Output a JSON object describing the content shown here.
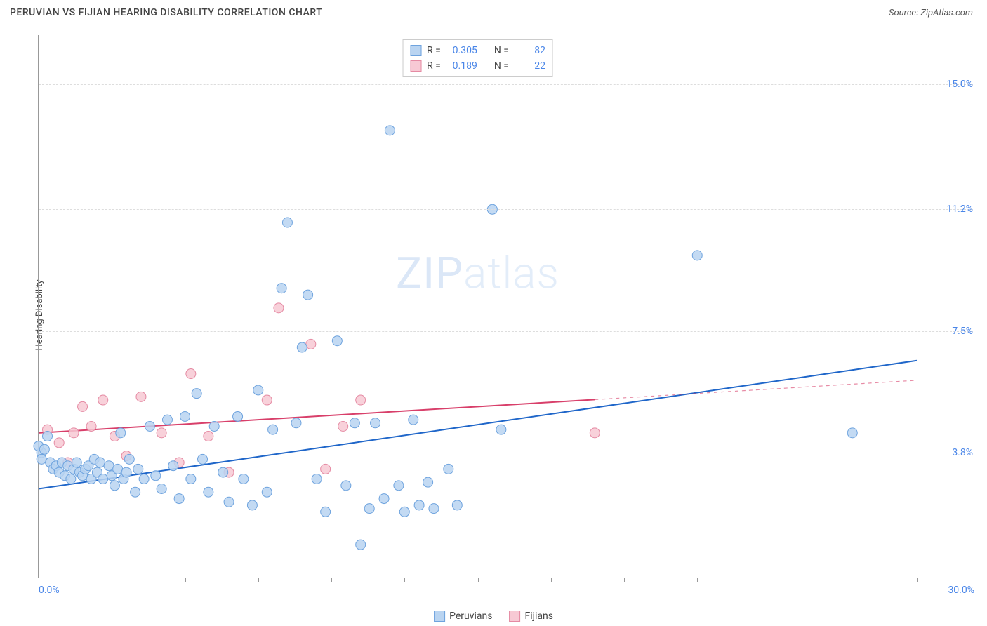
{
  "title": "PERUVIAN VS FIJIAN HEARING DISABILITY CORRELATION CHART",
  "source": "Source: ZipAtlas.com",
  "ylabel": "Hearing Disability",
  "watermark": {
    "bold": "ZIP",
    "thin": "atlas"
  },
  "chart": {
    "type": "scatter_with_regression",
    "background_color": "#ffffff",
    "grid_color": "#dddddd",
    "axis_color": "#999999",
    "value_color": "#4a86e8",
    "xlim": [
      0,
      30
    ],
    "ylim": [
      0,
      16.5
    ],
    "xstart_label": "0.0%",
    "xend_label": "30.0%",
    "xtick_positions": [
      0,
      2.5,
      5,
      7.5,
      10,
      12.5,
      15,
      17.5,
      20,
      22.5,
      25,
      27.5,
      30
    ],
    "yticks": [
      {
        "v": 3.8,
        "label": "3.8%"
      },
      {
        "v": 7.5,
        "label": "7.5%"
      },
      {
        "v": 11.2,
        "label": "11.2%"
      },
      {
        "v": 15.0,
        "label": "15.0%"
      }
    ],
    "series": [
      {
        "name": "Peruvians",
        "N": 82,
        "R": "0.305",
        "fill": "#b9d4f1",
        "stroke": "#6ea3de",
        "line_color": "#1f66c9",
        "line": {
          "x1": 0,
          "y1": 2.7,
          "x2": 30,
          "y2": 6.6,
          "data_xmax": 30
        },
        "points": [
          [
            0.1,
            3.8
          ],
          [
            0.1,
            3.6
          ],
          [
            0.3,
            4.3
          ],
          [
            0.4,
            3.5
          ],
          [
            0.5,
            3.3
          ],
          [
            0.6,
            3.4
          ],
          [
            0.7,
            3.2
          ],
          [
            0.8,
            3.5
          ],
          [
            0.9,
            3.1
          ],
          [
            1.0,
            3.4
          ],
          [
            1.1,
            3.0
          ],
          [
            1.2,
            3.3
          ],
          [
            1.3,
            3.5
          ],
          [
            1.4,
            3.2
          ],
          [
            1.5,
            3.1
          ],
          [
            1.6,
            3.3
          ],
          [
            1.7,
            3.4
          ],
          [
            1.8,
            3.0
          ],
          [
            1.9,
            3.6
          ],
          [
            2.0,
            3.2
          ],
          [
            2.1,
            3.5
          ],
          [
            2.2,
            3.0
          ],
          [
            2.4,
            3.4
          ],
          [
            2.5,
            3.1
          ],
          [
            2.6,
            2.8
          ],
          [
            2.7,
            3.3
          ],
          [
            2.8,
            4.4
          ],
          [
            2.9,
            3.0
          ],
          [
            3.0,
            3.2
          ],
          [
            3.1,
            3.6
          ],
          [
            3.3,
            2.6
          ],
          [
            3.4,
            3.3
          ],
          [
            3.6,
            3.0
          ],
          [
            3.8,
            4.6
          ],
          [
            4.0,
            3.1
          ],
          [
            4.2,
            2.7
          ],
          [
            4.4,
            4.8
          ],
          [
            4.6,
            3.4
          ],
          [
            4.8,
            2.4
          ],
          [
            5.0,
            4.9
          ],
          [
            5.2,
            3.0
          ],
          [
            5.4,
            5.6
          ],
          [
            5.6,
            3.6
          ],
          [
            5.8,
            2.6
          ],
          [
            6.0,
            4.6
          ],
          [
            6.3,
            3.2
          ],
          [
            6.5,
            2.3
          ],
          [
            6.8,
            4.9
          ],
          [
            7.0,
            3.0
          ],
          [
            7.3,
            2.2
          ],
          [
            7.5,
            5.7
          ],
          [
            7.8,
            2.6
          ],
          [
            8.0,
            4.5
          ],
          [
            8.3,
            8.8
          ],
          [
            8.5,
            10.8
          ],
          [
            8.8,
            4.7
          ],
          [
            9.0,
            7.0
          ],
          [
            9.2,
            8.6
          ],
          [
            9.5,
            3.0
          ],
          [
            9.8,
            2.0
          ],
          [
            10.2,
            7.2
          ],
          [
            10.5,
            2.8
          ],
          [
            10.8,
            4.7
          ],
          [
            11.0,
            1.0
          ],
          [
            11.3,
            2.1
          ],
          [
            11.5,
            4.7
          ],
          [
            11.8,
            2.4
          ],
          [
            12.0,
            13.6
          ],
          [
            12.3,
            2.8
          ],
          [
            12.5,
            2.0
          ],
          [
            12.8,
            4.8
          ],
          [
            13.0,
            2.2
          ],
          [
            13.3,
            2.9
          ],
          [
            13.5,
            2.1
          ],
          [
            14.0,
            3.3
          ],
          [
            14.3,
            2.2
          ],
          [
            15.5,
            11.2
          ],
          [
            15.8,
            4.5
          ],
          [
            22.5,
            9.8
          ],
          [
            27.8,
            4.4
          ],
          [
            0.0,
            4.0
          ],
          [
            0.2,
            3.9
          ]
        ]
      },
      {
        "name": "Fijians",
        "N": 22,
        "R": "0.189",
        "fill": "#f7c9d4",
        "stroke": "#e58aa3",
        "line_color": "#d83f6a",
        "line": {
          "x1": 0,
          "y1": 4.4,
          "x2": 30,
          "y2": 6.0,
          "data_xmax": 19
        },
        "points": [
          [
            0.3,
            4.5
          ],
          [
            0.7,
            4.1
          ],
          [
            1.0,
            3.5
          ],
          [
            1.2,
            4.4
          ],
          [
            1.5,
            5.2
          ],
          [
            1.8,
            4.6
          ],
          [
            2.2,
            5.4
          ],
          [
            2.6,
            4.3
          ],
          [
            3.0,
            3.7
          ],
          [
            3.5,
            5.5
          ],
          [
            4.2,
            4.4
          ],
          [
            4.8,
            3.5
          ],
          [
            5.2,
            6.2
          ],
          [
            5.8,
            4.3
          ],
          [
            6.5,
            3.2
          ],
          [
            7.8,
            5.4
          ],
          [
            8.2,
            8.2
          ],
          [
            9.3,
            7.1
          ],
          [
            9.8,
            3.3
          ],
          [
            10.4,
            4.6
          ],
          [
            11.0,
            5.4
          ],
          [
            19.0,
            4.4
          ]
        ]
      }
    ],
    "legend": [
      {
        "label": "Peruvians",
        "fill": "#b9d4f1",
        "stroke": "#6ea3de"
      },
      {
        "label": "Fijians",
        "fill": "#f7c9d4",
        "stroke": "#e58aa3"
      }
    ],
    "marker_radius": 7,
    "marker_stroke_width": 1,
    "line_width": 2
  }
}
